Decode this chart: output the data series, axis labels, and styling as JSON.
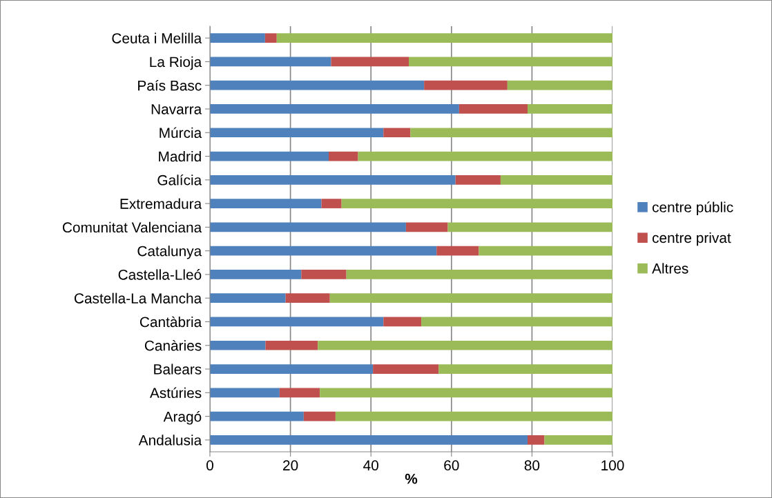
{
  "chart_data": {
    "type": "bar",
    "orientation": "horizontal",
    "stacked": true,
    "xlabel": "%",
    "categories": [
      "Ceuta i Melilla",
      "La Rioja",
      "País Basc",
      "Navarra",
      "Múrcia",
      "Madrid",
      "Galícia",
      "Extremadura",
      "Comunitat Valenciana",
      "Catalunya",
      "Castella-Lleó",
      "Castella-La Mancha",
      "Cantàbria",
      "Canàries",
      "Balears",
      "Astúries",
      "Aragó",
      "Andalusia"
    ],
    "series": [
      {
        "name": "centre públic",
        "color": "#4f81bd",
        "values": [
          13.7,
          30.1,
          53.2,
          61.9,
          43.1,
          29.5,
          61.0,
          27.7,
          48.7,
          56.3,
          22.7,
          18.8,
          43.1,
          13.8,
          40.5,
          17.3,
          23.3,
          78.9
        ]
      },
      {
        "name": "centre privat",
        "color": "#c0504d",
        "values": [
          2.9,
          19.3,
          20.7,
          17.0,
          6.7,
          7.3,
          11.2,
          5.0,
          10.4,
          10.5,
          11.2,
          11.0,
          9.4,
          13.0,
          16.3,
          10.0,
          7.9,
          4.2
        ]
      },
      {
        "name": "Altres",
        "color": "#9bbb59",
        "values": [
          83.4,
          50.6,
          26.1,
          21.1,
          50.2,
          63.2,
          27.8,
          67.3,
          40.9,
          33.2,
          66.1,
          70.2,
          47.5,
          73.2,
          43.2,
          72.7,
          68.8,
          16.9
        ]
      }
    ],
    "xlim": [
      0,
      100
    ],
    "xticks": [
      0,
      20,
      40,
      60,
      80,
      100
    ],
    "grid": "x",
    "legend": "right"
  }
}
